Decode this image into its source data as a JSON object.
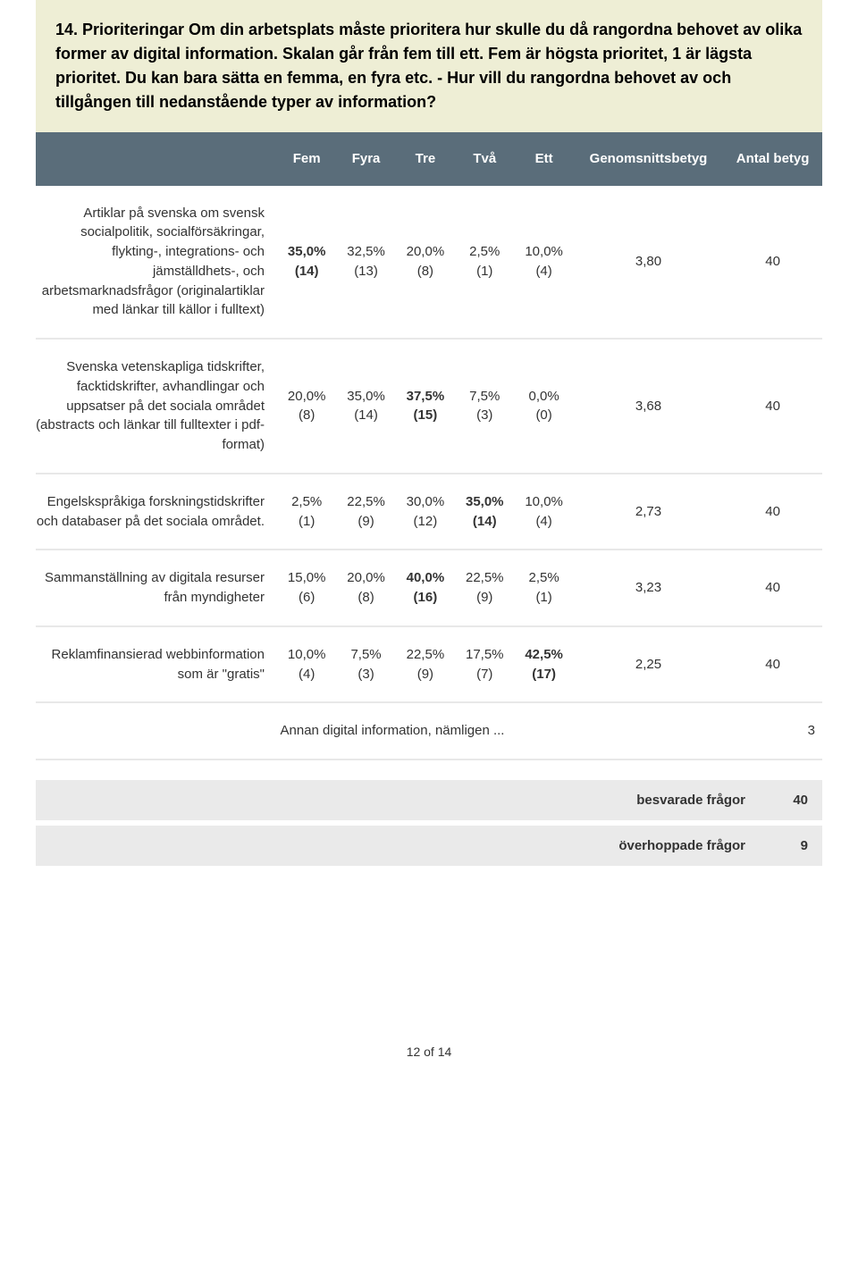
{
  "question": {
    "text": "14. Prioriteringar Om din arbetsplats måste prioritera hur skulle du då rangordna behovet av olika former av digital information. Skalan går från fem till ett. Fem är högsta prioritet, 1 är lägsta prioritet. Du kan bara sätta en femma, en fyra etc. - Hur vill du rangordna behovet av och tillgången till nedanstående typer av information?"
  },
  "table": {
    "columns": [
      "Fem",
      "Fyra",
      "Tre",
      "Två",
      "Ett",
      "Genomsnittsbetyg",
      "Antal betyg"
    ],
    "rows": [
      {
        "label": "Artiklar på svenska om svensk socialpolitik, socialförsäkringar, flykting-, integrations- och jämställdhets-, och arbetsmarknadsfrågor (originalartiklar med länkar till källor i fulltext)",
        "cells": [
          {
            "pct": "35,0%",
            "cnt": "(14)",
            "bold": true
          },
          {
            "pct": "32,5%",
            "cnt": "(13)",
            "bold": false
          },
          {
            "pct": "20,0%",
            "cnt": "(8)",
            "bold": false
          },
          {
            "pct": "2,5%",
            "cnt": "(1)",
            "bold": false
          },
          {
            "pct": "10,0%",
            "cnt": "(4)",
            "bold": false
          }
        ],
        "avg": "3,80",
        "count": "40"
      },
      {
        "label": "Svenska vetenskapliga tidskrifter, facktidskrifter, avhandlingar och uppsatser på det sociala området (abstracts och länkar till fulltexter i pdf-format)",
        "cells": [
          {
            "pct": "20,0%",
            "cnt": "(8)",
            "bold": false
          },
          {
            "pct": "35,0%",
            "cnt": "(14)",
            "bold": false
          },
          {
            "pct": "37,5%",
            "cnt": "(15)",
            "bold": true
          },
          {
            "pct": "7,5%",
            "cnt": "(3)",
            "bold": false
          },
          {
            "pct": "0,0%",
            "cnt": "(0)",
            "bold": false
          }
        ],
        "avg": "3,68",
        "count": "40"
      },
      {
        "label": "Engelskspråkiga forskningstidskrifter och databaser på det sociala området.",
        "cells": [
          {
            "pct": "2,5%",
            "cnt": "(1)",
            "bold": false
          },
          {
            "pct": "22,5%",
            "cnt": "(9)",
            "bold": false
          },
          {
            "pct": "30,0%",
            "cnt": "(12)",
            "bold": false
          },
          {
            "pct": "35,0%",
            "cnt": "(14)",
            "bold": true
          },
          {
            "pct": "10,0%",
            "cnt": "(4)",
            "bold": false
          }
        ],
        "avg": "2,73",
        "count": "40"
      },
      {
        "label": "Sammanställning av digitala resurser från myndigheter",
        "cells": [
          {
            "pct": "15,0%",
            "cnt": "(6)",
            "bold": false
          },
          {
            "pct": "20,0%",
            "cnt": "(8)",
            "bold": false
          },
          {
            "pct": "40,0%",
            "cnt": "(16)",
            "bold": true
          },
          {
            "pct": "22,5%",
            "cnt": "(9)",
            "bold": false
          },
          {
            "pct": "2,5%",
            "cnt": "(1)",
            "bold": false
          }
        ],
        "avg": "3,23",
        "count": "40"
      },
      {
        "label": "Reklamfinansierad webbinformation som är \"gratis\"",
        "cells": [
          {
            "pct": "10,0%",
            "cnt": "(4)",
            "bold": false
          },
          {
            "pct": "7,5%",
            "cnt": "(3)",
            "bold": false
          },
          {
            "pct": "22,5%",
            "cnt": "(9)",
            "bold": false
          },
          {
            "pct": "17,5%",
            "cnt": "(7)",
            "bold": false
          },
          {
            "pct": "42,5%",
            "cnt": "(17)",
            "bold": true
          }
        ],
        "avg": "2,25",
        "count": "40"
      }
    ],
    "extra_row": {
      "label": "Annan digital information, nämligen ...",
      "value": "3"
    }
  },
  "summary": {
    "answered": {
      "label": "besvarade frågor",
      "value": "40"
    },
    "skipped": {
      "label": "överhoppade frågor",
      "value": "9"
    }
  },
  "footer": {
    "text": "12 of 14"
  },
  "colors": {
    "header_bg": "#eeeed5",
    "thead_bg": "#5a6d7a",
    "thead_fg": "#ffffff",
    "row_border": "#e8e8e8",
    "summary_bg": "#eaeaea",
    "text": "#333333"
  }
}
